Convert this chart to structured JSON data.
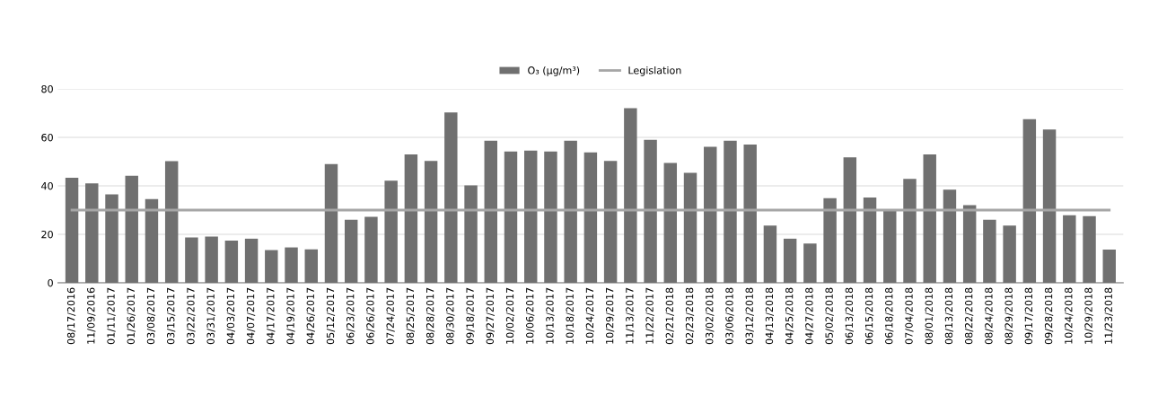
{
  "chart_data": {
    "type": "bar",
    "categories": [
      "08/17/2016",
      "11/09/2016",
      "01/11/2017",
      "01/26/2017",
      "03/08/2017",
      "03/15/2017",
      "03/22/2017",
      "03/31/2017",
      "04/03/2017",
      "04/07/2017",
      "04/17/2017",
      "04/19/2017",
      "04/26/2017",
      "05/12/2017",
      "06/23/2017",
      "06/26/2017",
      "07/24/2017",
      "08/25/2017",
      "08/28/2017",
      "08/30/2017",
      "09/18/2017",
      "09/27/2017",
      "10/02/2017",
      "10/06/2017",
      "10/13/2017",
      "10/18/2017",
      "10/24/2017",
      "10/29/2017",
      "11/13/2017",
      "11/22/2017",
      "02/21/2018",
      "02/23/2018",
      "03/02/2018",
      "03/06/2018",
      "03/12/2018",
      "04/13/2018",
      "04/25/2018",
      "04/27/2018",
      "05/02/2018",
      "06/13/2018",
      "06/15/2018",
      "06/18/2018",
      "07/04/2018",
      "08/01/2018",
      "08/13/2018",
      "08/22/2018",
      "08/24/2018",
      "08/29/2018",
      "09/17/2018",
      "09/28/2018",
      "10/24/2018",
      "10/29/2018",
      "11/23/2018"
    ],
    "series": [
      {
        "name": "O₃ (µg/m³)",
        "color": "#707070",
        "values": [
          43.3,
          41,
          36.5,
          44.2,
          34.5,
          50.2,
          18.7,
          19.1,
          17.4,
          18.2,
          13.5,
          14.6,
          13.8,
          49,
          26,
          27.2,
          42.1,
          53,
          50.3,
          70.3,
          40.2,
          58.6,
          54.2,
          54.5,
          54.2,
          58.6,
          53.8,
          50.3,
          72,
          59,
          49.4,
          45.4,
          56.1,
          58.6,
          57,
          23.6,
          18.2,
          16.2,
          34.9,
          51.8,
          35.2,
          30.4,
          42.9,
          53,
          38.4,
          32,
          26,
          23.6,
          67.5,
          63.2,
          27.9,
          27.5,
          13.7
        ]
      },
      {
        "name": "Legislation",
        "type": "line",
        "color": "#a6a6a6",
        "values": [
          30,
          30,
          30,
          30,
          30,
          30,
          30,
          30,
          30,
          30,
          30,
          30,
          30,
          30,
          30,
          30,
          30,
          30,
          30,
          30,
          30,
          30,
          30,
          30,
          30,
          30,
          30,
          30,
          30,
          30,
          30,
          30,
          30,
          30,
          30,
          30,
          30,
          30,
          30,
          30,
          30,
          30,
          30,
          30,
          30,
          30,
          30,
          30,
          30,
          30,
          30,
          30,
          30
        ]
      }
    ],
    "ylim": [
      0,
      80
    ],
    "yticks": [
      0,
      20,
      40,
      60,
      80
    ],
    "grid": "y",
    "legend": "top"
  }
}
